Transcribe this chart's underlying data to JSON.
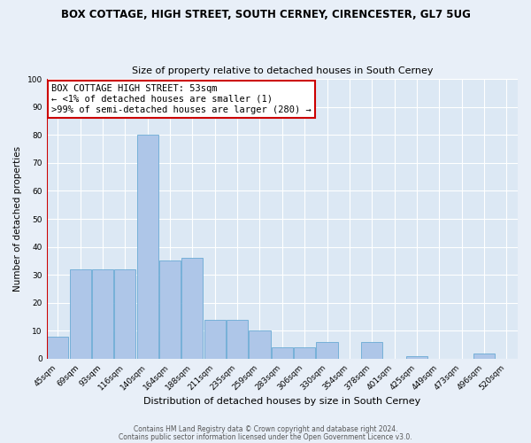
{
  "title": "BOX COTTAGE, HIGH STREET, SOUTH CERNEY, CIRENCESTER, GL7 5UG",
  "subtitle": "Size of property relative to detached houses in South Cerney",
  "xlabel": "Distribution of detached houses by size in South Cerney",
  "ylabel": "Number of detached properties",
  "bin_labels": [
    "45sqm",
    "69sqm",
    "93sqm",
    "116sqm",
    "140sqm",
    "164sqm",
    "188sqm",
    "211sqm",
    "235sqm",
    "259sqm",
    "283sqm",
    "306sqm",
    "330sqm",
    "354sqm",
    "378sqm",
    "401sqm",
    "425sqm",
    "449sqm",
    "473sqm",
    "496sqm",
    "520sqm"
  ],
  "bar_heights": [
    8,
    32,
    32,
    32,
    80,
    35,
    36,
    14,
    14,
    10,
    4,
    4,
    6,
    0,
    6,
    0,
    1,
    0,
    0,
    2,
    0
  ],
  "bar_color": "#aec6e8",
  "bar_edge_color": "#6aaad4",
  "highlight_color": "#cc0000",
  "annotation_title": "BOX COTTAGE HIGH STREET: 53sqm",
  "annotation_line1": "← <1% of detached houses are smaller (1)",
  "annotation_line2": ">99% of semi-detached houses are larger (280) →",
  "ylim": [
    0,
    100
  ],
  "yticks": [
    0,
    10,
    20,
    30,
    40,
    50,
    60,
    70,
    80,
    90,
    100
  ],
  "footer1": "Contains HM Land Registry data © Crown copyright and database right 2024.",
  "footer2": "Contains public sector information licensed under the Open Government Licence v3.0.",
  "bg_color": "#e8eff8",
  "plot_bg_color": "#dce8f4"
}
